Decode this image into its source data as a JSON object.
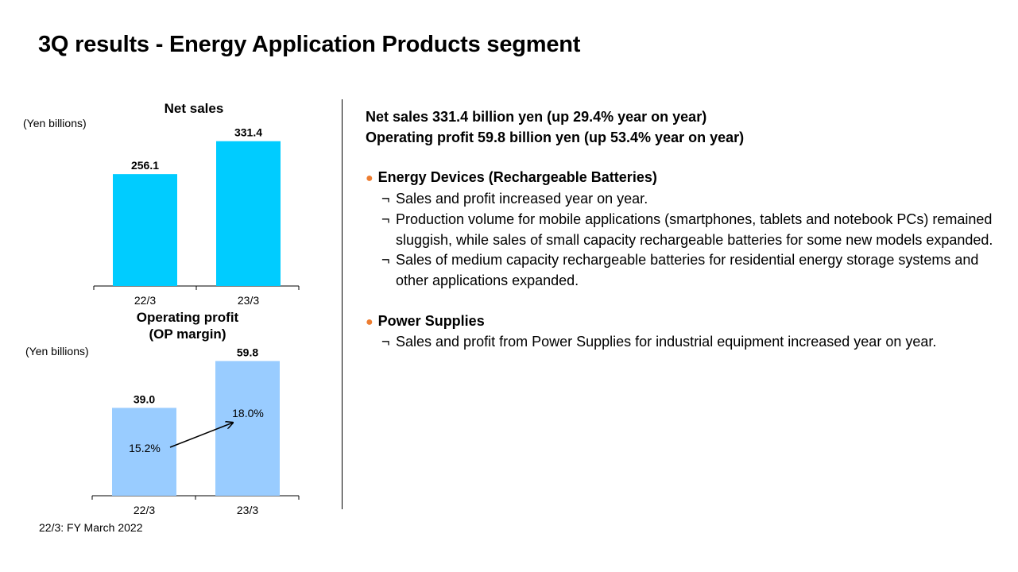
{
  "title": "3Q results - Energy Application Products segment",
  "footnote": "22/3: FY March 2022",
  "colors": {
    "net_sales_bar": "#00CCFF",
    "op_bar": "#99CCFF",
    "bullet_dot": "#ED7D31"
  },
  "chart_data": [
    {
      "type": "bar",
      "title": "Net sales",
      "unit_label": "(Yen billions)",
      "categories": [
        "22/3",
        "23/3"
      ],
      "values": [
        256.1,
        331.4
      ],
      "value_labels": [
        "256.1",
        "331.4"
      ],
      "ylim": [
        0,
        360
      ]
    },
    {
      "type": "bar",
      "title_lines": [
        "Operating profit",
        "(OP margin)"
      ],
      "unit_label": "(Yen billions)",
      "categories": [
        "22/3",
        "23/3"
      ],
      "values": [
        39.0,
        59.8
      ],
      "value_labels": [
        "39.0",
        "59.8"
      ],
      "margins": [
        "15.2%",
        "18.0%"
      ],
      "ylim": [
        0,
        67
      ]
    }
  ],
  "summary": {
    "line1": "Net sales  331.4 billion yen (up 29.4% year on year)",
    "line2": "Operating profit 59.8 billion yen (up 53.4% year on year)"
  },
  "sections": [
    {
      "dot": "●",
      "heading": "Energy Devices (Rechargeable Batteries)",
      "bullets": [
        "Sales and profit increased year on year.",
        "Production volume for mobile applications (smartphones, tablets and notebook PCs) remained sluggish, while sales of small capacity rechargeable batteries for some new models expanded.",
        "Sales of medium capacity rechargeable batteries for residential energy storage systems and other applications expanded."
      ]
    },
    {
      "dot": "●",
      "heading": "Power Supplies",
      "bullets": [
        "Sales and profit from Power Supplies for industrial equipment increased year on year."
      ]
    }
  ],
  "bullet_mark": "¬"
}
